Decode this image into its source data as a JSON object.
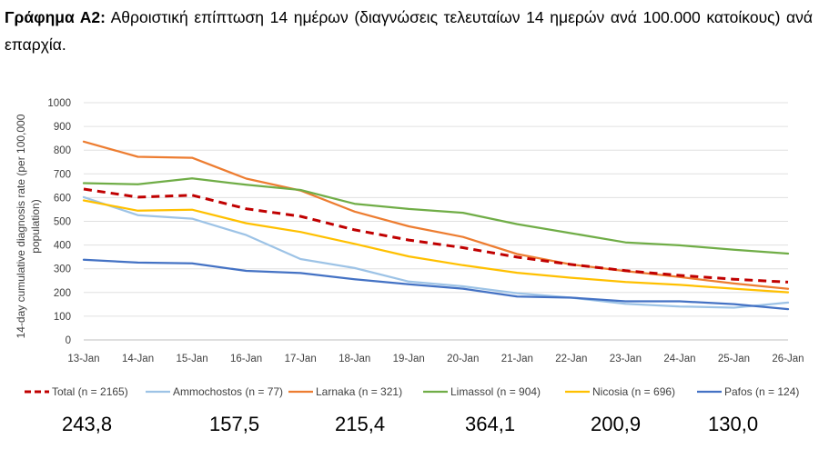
{
  "heading": {
    "label": "Γράφημα Α2:",
    "text": "Αθροιστική επίπτωση 14 ημέρων (διαγνώσεις τελευταίων 14 ημερών ανά 100.000 κατοίκους) ανά επαρχία."
  },
  "chart_data": {
    "type": "line",
    "x": [
      "13-Jan",
      "14-Jan",
      "15-Jan",
      "16-Jan",
      "17-Jan",
      "18-Jan",
      "19-Jan",
      "20-Jan",
      "21-Jan",
      "22-Jan",
      "23-Jan",
      "24-Jan",
      "25-Jan",
      "26-Jan"
    ],
    "ylabel_line1": "14-day cumulative diagnosis rate (per 100,000",
    "ylabel_line2": "population)",
    "ylim": [
      0,
      1000
    ],
    "yticks": [
      "0",
      "100",
      "200",
      "300",
      "400",
      "500",
      "600",
      "700",
      "800",
      "900",
      "1000"
    ],
    "grid": true,
    "legend_position": "bottom",
    "series": [
      {
        "name": "Total (n = 2165)",
        "color": "#c00000",
        "dashed": true,
        "values": [
          636,
          602,
          610,
          553,
          521,
          464,
          421,
          389,
          349,
          318,
          292,
          272,
          256,
          243.8
        ]
      },
      {
        "name": "Ammochostos (n = 77)",
        "color": "#9dc3e6",
        "dashed": false,
        "values": [
          602,
          526,
          511,
          442,
          341,
          303,
          246,
          226,
          197,
          178,
          152,
          141,
          136,
          157.5
        ]
      },
      {
        "name": "Larnaka (n = 321)",
        "color": "#ed7d31",
        "dashed": false,
        "values": [
          836,
          772,
          768,
          680,
          630,
          541,
          479,
          434,
          362,
          318,
          290,
          265,
          238,
          215.4
        ]
      },
      {
        "name": "Limassol (n = 904)",
        "color": "#70ad47",
        "dashed": false,
        "values": [
          661,
          656,
          681,
          654,
          632,
          574,
          552,
          536,
          488,
          450,
          411,
          399,
          380,
          364.1
        ]
      },
      {
        "name": "Nicosia (n = 696)",
        "color": "#ffc000",
        "dashed": false,
        "values": [
          588,
          545,
          549,
          492,
          455,
          405,
          352,
          315,
          283,
          262,
          244,
          232,
          216,
          200.9
        ]
      },
      {
        "name": "Pafos (n = 124)",
        "color": "#4472c4",
        "dashed": false,
        "values": [
          338,
          326,
          323,
          291,
          282,
          256,
          235,
          216,
          183,
          178,
          163,
          163,
          151,
          130.0
        ]
      }
    ]
  },
  "summary_values": [
    "243,8",
    "157,5",
    "215,4",
    "364,1",
    "200,9",
    "130,0"
  ]
}
